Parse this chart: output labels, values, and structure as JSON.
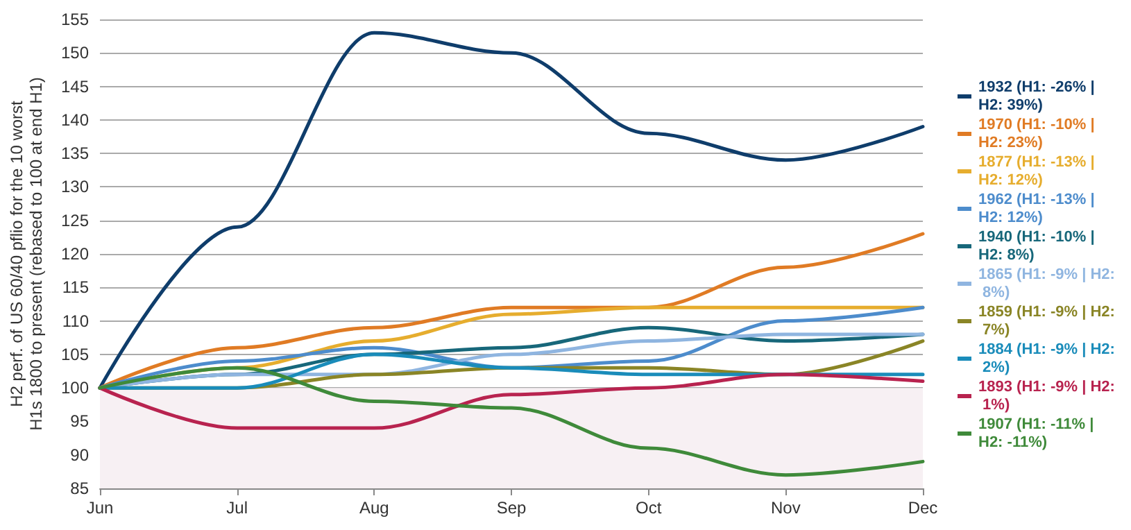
{
  "chart_data": {
    "type": "line",
    "ylabel": "H2 perf. of US 60/40 pflio for the 10 worst H1s 1800 to present (rebased to 100 at end H1)",
    "categories": [
      "Jun",
      "Jul",
      "Aug",
      "Sep",
      "Oct",
      "Nov",
      "Dec"
    ],
    "series": [
      {
        "name": "1932 (H1: -26% | H2: 39%)",
        "color": "#0f3d6b",
        "values": [
          100,
          124,
          153,
          150,
          138,
          134,
          139
        ]
      },
      {
        "name": "1970 (H1: -10% | H2: 23%)",
        "color": "#e07b24",
        "values": [
          100,
          106,
          109,
          112,
          112,
          118,
          123
        ]
      },
      {
        "name": "1877 (H1: -13% | H2: 12%)",
        "color": "#e6ad2e",
        "values": [
          100,
          103,
          107,
          111,
          112,
          112,
          112
        ]
      },
      {
        "name": "1962 (H1: -13% | H2: 12%)",
        "color": "#4d8ccc",
        "values": [
          100,
          104,
          106,
          103,
          104,
          110,
          112
        ]
      },
      {
        "name": "1940 (H1: -10% | H2: 8%)",
        "color": "#17677a",
        "values": [
          100,
          102,
          105,
          106,
          109,
          107,
          108
        ]
      },
      {
        "name": "1865 (H1: -9% | H2: 8%)",
        "color": "#8fb5e0",
        "values": [
          100,
          102,
          102,
          105,
          107,
          108,
          108
        ]
      },
      {
        "name": "1859 (H1: -9% | H2: 7%)",
        "color": "#8a8526",
        "values": [
          100,
          100,
          102,
          103,
          103,
          102,
          107
        ]
      },
      {
        "name": "1884 (H1: -9% | H2: 2%)",
        "color": "#1a8cba",
        "values": [
          100,
          100,
          105,
          103,
          102,
          102,
          102
        ]
      },
      {
        "name": "1893 (H1: -9% | H2: 1%)",
        "color": "#b8234f",
        "values": [
          100,
          94,
          94,
          99,
          100,
          102,
          101
        ]
      },
      {
        "name": "1907 (H1: -11% | H2: -11%)",
        "color": "#3f8a3a",
        "values": [
          100,
          103,
          98,
          97,
          91,
          87,
          89
        ]
      }
    ],
    "ylim": [
      85,
      155
    ],
    "yticks": [
      85,
      90,
      95,
      100,
      105,
      110,
      115,
      120,
      125,
      130,
      135,
      140,
      145,
      150,
      155
    ],
    "bands": [
      {
        "axis": "y",
        "from": 85,
        "to": 100,
        "color": "#f7f0f3"
      }
    ],
    "grid": "y",
    "legend": "right",
    "marker": "none",
    "line_style": "solid"
  }
}
